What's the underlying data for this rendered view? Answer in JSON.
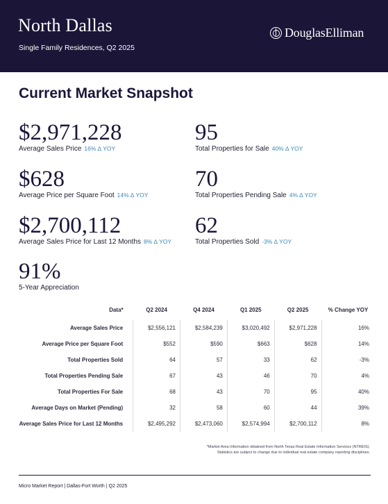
{
  "header": {
    "title": "North Dallas",
    "subtitle": "Single Family Residences, Q2 2025",
    "brand": "DouglasElliman",
    "brand_icon": "de-monogram-icon"
  },
  "snapshot": {
    "title": "Current Market Snapshot",
    "stats": [
      {
        "value": "$2,971,228",
        "label": "Average Sales Price",
        "change": "16% ∆ YOY"
      },
      {
        "value": "95",
        "label": "Total Properties for Sale",
        "change": "40% ∆ YOY"
      },
      {
        "value": "$628",
        "label": "Average Price per Square Foot",
        "change": "14% ∆ YOY"
      },
      {
        "value": "70",
        "label": "Total Properties Pending Sale",
        "change": "4% ∆ YOY"
      },
      {
        "value": "$2,700,112",
        "label": "Average Sales Price for Last 12 Months",
        "change": "8% ∆ YOY"
      },
      {
        "value": "62",
        "label": "Total Properties Sold",
        "change": "-3% ∆ YOY"
      },
      {
        "value": "91%",
        "label": "5-Year Appreciation",
        "change": ""
      }
    ]
  },
  "table": {
    "headers": [
      "Data*",
      "Q2 2024",
      "Q4 2024",
      "Q1 2025",
      "Q2 2025",
      "% Change YOY"
    ],
    "rows": [
      [
        "Average Sales Price",
        "$2,556,121",
        "$2,584,239",
        "$3,020,492",
        "$2,971,228",
        "16%"
      ],
      [
        "Average Price per Square Foot",
        "$552",
        "$590",
        "$663",
        "$628",
        "14%"
      ],
      [
        "Total Properties Sold",
        "64",
        "57",
        "33",
        "62",
        "-3%"
      ],
      [
        "Total Properties Pending Sale",
        "67",
        "43",
        "46",
        "70",
        "4%"
      ],
      [
        "Total Properties For Sale",
        "68",
        "43",
        "70",
        "95",
        "40%"
      ],
      [
        "Average Days on Market (Pending)",
        "32",
        "58",
        "60",
        "44",
        "39%"
      ],
      [
        "Average Sales Price for Last 12 Months",
        "$2,495,292",
        "$2,473,060",
        "$2,574,994",
        "$2,700,112",
        "8%"
      ]
    ]
  },
  "footnote": {
    "line1": "*Market Area Information obtained from North Texas Real Estate Information Services (NTREIS).",
    "line2": "Statistics are subject to change due to individual real estate company reporting disciplines."
  },
  "footer": {
    "text": "Micro Market Report | Dallas-Fort Worth | Q2 2025"
  },
  "colors": {
    "header_bg": "#1b1538",
    "accent_change": "#3f88b5"
  }
}
